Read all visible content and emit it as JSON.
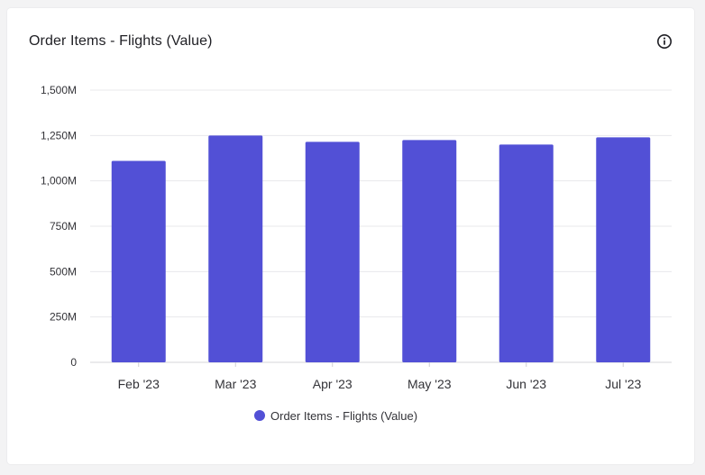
{
  "card": {
    "title": "Order Items - Flights (Value)",
    "info_icon": "info-circle-icon"
  },
  "chart_data": {
    "type": "bar",
    "title": "Order Items - Flights (Value)",
    "categories": [
      "Feb '23",
      "Mar '23",
      "Apr '23",
      "May '23",
      "Jun '23",
      "Jul '23"
    ],
    "series": [
      {
        "name": "Order Items - Flights (Value)",
        "color": "#5250d6",
        "values": [
          1110,
          1250,
          1215,
          1225,
          1200,
          1240
        ]
      }
    ],
    "unit": "M",
    "ylim": [
      0,
      1500
    ],
    "yticks": [
      0,
      250,
      500,
      750,
      1000,
      1250,
      1500
    ],
    "ytick_labels": [
      "0",
      "250M",
      "500M",
      "750M",
      "1,000M",
      "1,250M",
      "1,500M"
    ],
    "grid": true,
    "legend_position": "bottom-center"
  }
}
